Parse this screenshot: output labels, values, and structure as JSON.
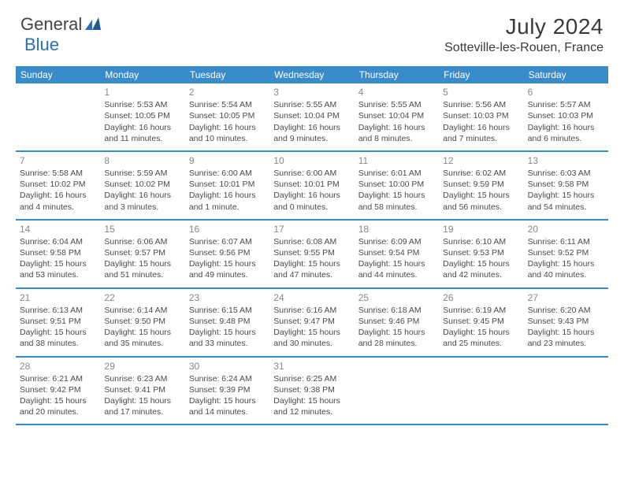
{
  "logo": {
    "text_general": "General",
    "text_blue": "Blue"
  },
  "title": "July 2024",
  "location": "Sotteville-les-Rouen, France",
  "colors": {
    "header_bg": "#3a8bc9",
    "header_text": "#ffffff",
    "body_text": "#4a4a4a",
    "daynum_text": "#888888",
    "divider": "#3a8bc9",
    "logo_blue": "#2a6fb5"
  },
  "weekdays": [
    "Sunday",
    "Monday",
    "Tuesday",
    "Wednesday",
    "Thursday",
    "Friday",
    "Saturday"
  ],
  "weeks": [
    [
      null,
      {
        "n": "1",
        "sr": "Sunrise: 5:53 AM",
        "ss": "Sunset: 10:05 PM",
        "d1": "Daylight: 16 hours",
        "d2": "and 11 minutes."
      },
      {
        "n": "2",
        "sr": "Sunrise: 5:54 AM",
        "ss": "Sunset: 10:05 PM",
        "d1": "Daylight: 16 hours",
        "d2": "and 10 minutes."
      },
      {
        "n": "3",
        "sr": "Sunrise: 5:55 AM",
        "ss": "Sunset: 10:04 PM",
        "d1": "Daylight: 16 hours",
        "d2": "and 9 minutes."
      },
      {
        "n": "4",
        "sr": "Sunrise: 5:55 AM",
        "ss": "Sunset: 10:04 PM",
        "d1": "Daylight: 16 hours",
        "d2": "and 8 minutes."
      },
      {
        "n": "5",
        "sr": "Sunrise: 5:56 AM",
        "ss": "Sunset: 10:03 PM",
        "d1": "Daylight: 16 hours",
        "d2": "and 7 minutes."
      },
      {
        "n": "6",
        "sr": "Sunrise: 5:57 AM",
        "ss": "Sunset: 10:03 PM",
        "d1": "Daylight: 16 hours",
        "d2": "and 6 minutes."
      }
    ],
    [
      {
        "n": "7",
        "sr": "Sunrise: 5:58 AM",
        "ss": "Sunset: 10:02 PM",
        "d1": "Daylight: 16 hours",
        "d2": "and 4 minutes."
      },
      {
        "n": "8",
        "sr": "Sunrise: 5:59 AM",
        "ss": "Sunset: 10:02 PM",
        "d1": "Daylight: 16 hours",
        "d2": "and 3 minutes."
      },
      {
        "n": "9",
        "sr": "Sunrise: 6:00 AM",
        "ss": "Sunset: 10:01 PM",
        "d1": "Daylight: 16 hours",
        "d2": "and 1 minute."
      },
      {
        "n": "10",
        "sr": "Sunrise: 6:00 AM",
        "ss": "Sunset: 10:01 PM",
        "d1": "Daylight: 16 hours",
        "d2": "and 0 minutes."
      },
      {
        "n": "11",
        "sr": "Sunrise: 6:01 AM",
        "ss": "Sunset: 10:00 PM",
        "d1": "Daylight: 15 hours",
        "d2": "and 58 minutes."
      },
      {
        "n": "12",
        "sr": "Sunrise: 6:02 AM",
        "ss": "Sunset: 9:59 PM",
        "d1": "Daylight: 15 hours",
        "d2": "and 56 minutes."
      },
      {
        "n": "13",
        "sr": "Sunrise: 6:03 AM",
        "ss": "Sunset: 9:58 PM",
        "d1": "Daylight: 15 hours",
        "d2": "and 54 minutes."
      }
    ],
    [
      {
        "n": "14",
        "sr": "Sunrise: 6:04 AM",
        "ss": "Sunset: 9:58 PM",
        "d1": "Daylight: 15 hours",
        "d2": "and 53 minutes."
      },
      {
        "n": "15",
        "sr": "Sunrise: 6:06 AM",
        "ss": "Sunset: 9:57 PM",
        "d1": "Daylight: 15 hours",
        "d2": "and 51 minutes."
      },
      {
        "n": "16",
        "sr": "Sunrise: 6:07 AM",
        "ss": "Sunset: 9:56 PM",
        "d1": "Daylight: 15 hours",
        "d2": "and 49 minutes."
      },
      {
        "n": "17",
        "sr": "Sunrise: 6:08 AM",
        "ss": "Sunset: 9:55 PM",
        "d1": "Daylight: 15 hours",
        "d2": "and 47 minutes."
      },
      {
        "n": "18",
        "sr": "Sunrise: 6:09 AM",
        "ss": "Sunset: 9:54 PM",
        "d1": "Daylight: 15 hours",
        "d2": "and 44 minutes."
      },
      {
        "n": "19",
        "sr": "Sunrise: 6:10 AM",
        "ss": "Sunset: 9:53 PM",
        "d1": "Daylight: 15 hours",
        "d2": "and 42 minutes."
      },
      {
        "n": "20",
        "sr": "Sunrise: 6:11 AM",
        "ss": "Sunset: 9:52 PM",
        "d1": "Daylight: 15 hours",
        "d2": "and 40 minutes."
      }
    ],
    [
      {
        "n": "21",
        "sr": "Sunrise: 6:13 AM",
        "ss": "Sunset: 9:51 PM",
        "d1": "Daylight: 15 hours",
        "d2": "and 38 minutes."
      },
      {
        "n": "22",
        "sr": "Sunrise: 6:14 AM",
        "ss": "Sunset: 9:50 PM",
        "d1": "Daylight: 15 hours",
        "d2": "and 35 minutes."
      },
      {
        "n": "23",
        "sr": "Sunrise: 6:15 AM",
        "ss": "Sunset: 9:48 PM",
        "d1": "Daylight: 15 hours",
        "d2": "and 33 minutes."
      },
      {
        "n": "24",
        "sr": "Sunrise: 6:16 AM",
        "ss": "Sunset: 9:47 PM",
        "d1": "Daylight: 15 hours",
        "d2": "and 30 minutes."
      },
      {
        "n": "25",
        "sr": "Sunrise: 6:18 AM",
        "ss": "Sunset: 9:46 PM",
        "d1": "Daylight: 15 hours",
        "d2": "and 28 minutes."
      },
      {
        "n": "26",
        "sr": "Sunrise: 6:19 AM",
        "ss": "Sunset: 9:45 PM",
        "d1": "Daylight: 15 hours",
        "d2": "and 25 minutes."
      },
      {
        "n": "27",
        "sr": "Sunrise: 6:20 AM",
        "ss": "Sunset: 9:43 PM",
        "d1": "Daylight: 15 hours",
        "d2": "and 23 minutes."
      }
    ],
    [
      {
        "n": "28",
        "sr": "Sunrise: 6:21 AM",
        "ss": "Sunset: 9:42 PM",
        "d1": "Daylight: 15 hours",
        "d2": "and 20 minutes."
      },
      {
        "n": "29",
        "sr": "Sunrise: 6:23 AM",
        "ss": "Sunset: 9:41 PM",
        "d1": "Daylight: 15 hours",
        "d2": "and 17 minutes."
      },
      {
        "n": "30",
        "sr": "Sunrise: 6:24 AM",
        "ss": "Sunset: 9:39 PM",
        "d1": "Daylight: 15 hours",
        "d2": "and 14 minutes."
      },
      {
        "n": "31",
        "sr": "Sunrise: 6:25 AM",
        "ss": "Sunset: 9:38 PM",
        "d1": "Daylight: 15 hours",
        "d2": "and 12 minutes."
      },
      null,
      null,
      null
    ]
  ]
}
